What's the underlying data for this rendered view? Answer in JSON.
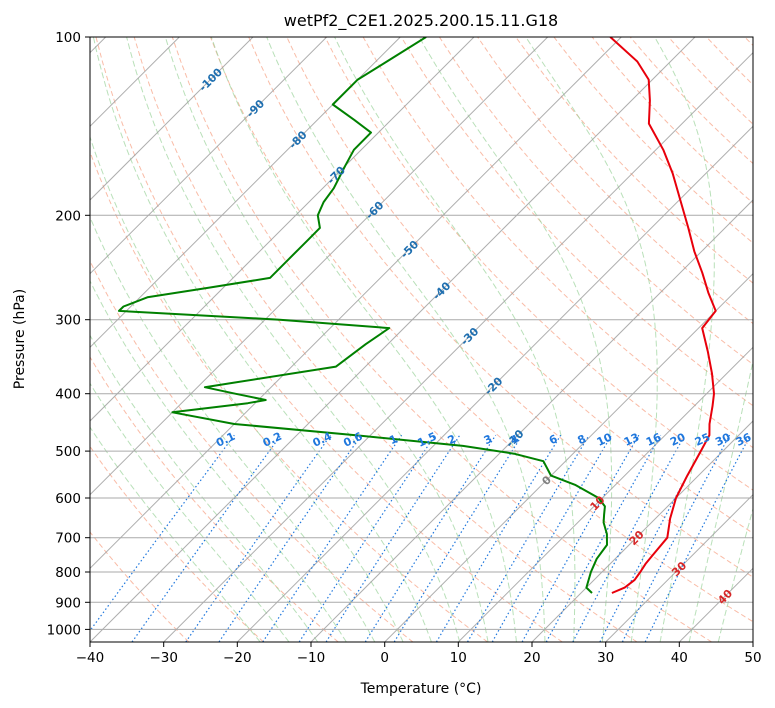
{
  "chart_data": {
    "type": "line",
    "title": "wetPf2_C2E1.2025.200.15.11.G18",
    "xlabel": "Temperature (°C)",
    "ylabel": "Pressure (hPa)",
    "xlim": [
      -40,
      50
    ],
    "ylim": [
      1050,
      100
    ],
    "y_scale": "log",
    "grid": true,
    "x_ticks": [
      -40,
      -30,
      -20,
      -10,
      0,
      10,
      20,
      30,
      40,
      50
    ],
    "y_ticks": [
      100,
      200,
      300,
      400,
      500,
      600,
      700,
      800,
      900,
      1000
    ],
    "skew": true,
    "colors": {
      "temperature": "#e8000b",
      "dewpoint": "#008000",
      "isotherm": "#a0a0a0",
      "dry_adiabat": "#f7a58a",
      "moist_adiabat": "#9bd39b",
      "mixing_ratio": "#1f77dd",
      "isotherm_label": "#1f6fb0",
      "dry_adiabat_label": "#d62728"
    },
    "isotherm_labels": [
      "-100",
      "-90",
      "-80",
      "-70",
      "-60",
      "-50",
      "-40",
      "-30",
      "-20",
      "-10",
      "0"
    ],
    "mixing_ratio_labels": [
      "0.1",
      "0.2",
      "0.4",
      "0.6",
      "1",
      "1.5",
      "2",
      "3",
      "4",
      "6",
      "8",
      "10",
      "13",
      "16",
      "20",
      "25",
      "30",
      "36"
    ],
    "dry_adiabat_labels": [
      "10",
      "20",
      "30",
      "40"
    ],
    "series": [
      {
        "key": "temperature",
        "pressure": [
          868,
          850,
          825,
          800,
          775,
          750,
          700,
          650,
          600,
          550,
          500,
          470,
          450,
          420,
          400,
          370,
          340,
          310,
          290,
          270,
          250,
          230,
          210,
          190,
          170,
          155,
          140,
          128,
          118,
          110,
          100
        ],
        "temperature": [
          24.2,
          25.2,
          25.5,
          25.2,
          24.8,
          24.6,
          24.2,
          22.0,
          20.0,
          18.5,
          17.0,
          16.0,
          14.5,
          12.5,
          11.0,
          8.0,
          4.5,
          0.5,
          0.0,
          -3.5,
          -7.0,
          -11.0,
          -15.0,
          -19.5,
          -24.5,
          -29.0,
          -34.5,
          -37.5,
          -40.5,
          -44.5,
          -51.5
        ]
      },
      {
        "key": "dewpoint",
        "pressure": [
          868,
          850,
          800,
          760,
          720,
          690,
          660,
          640,
          620,
          600,
          570,
          550,
          520,
          505,
          490,
          470,
          450,
          430,
          415,
          410,
          400,
          390,
          360,
          330,
          310,
          300,
          290,
          285,
          275,
          265,
          255,
          240,
          220,
          210,
          200,
          190,
          180,
          165,
          155,
          145,
          138,
          130,
          118,
          110,
          100
        ],
        "temperature": [
          21.5,
          20.0,
          18.5,
          17.5,
          17.0,
          15.5,
          13.5,
          12.5,
          11.5,
          9.5,
          4.5,
          0.0,
          -3.0,
          -8.0,
          -16.0,
          -32.0,
          -50.0,
          -60.0,
          -51.0,
          -49.0,
          -54.0,
          -59.0,
          -44.0,
          -43.0,
          -42.0,
          -58.0,
          -81.0,
          -81.0,
          -79.0,
          -72.0,
          -65.0,
          -65.0,
          -65.0,
          -65.0,
          -67.0,
          -68.0,
          -68.5,
          -70.0,
          -71.0,
          -71.0,
          -75.0,
          -80.0,
          -80.0,
          -78.5,
          -76.5
        ]
      }
    ]
  }
}
